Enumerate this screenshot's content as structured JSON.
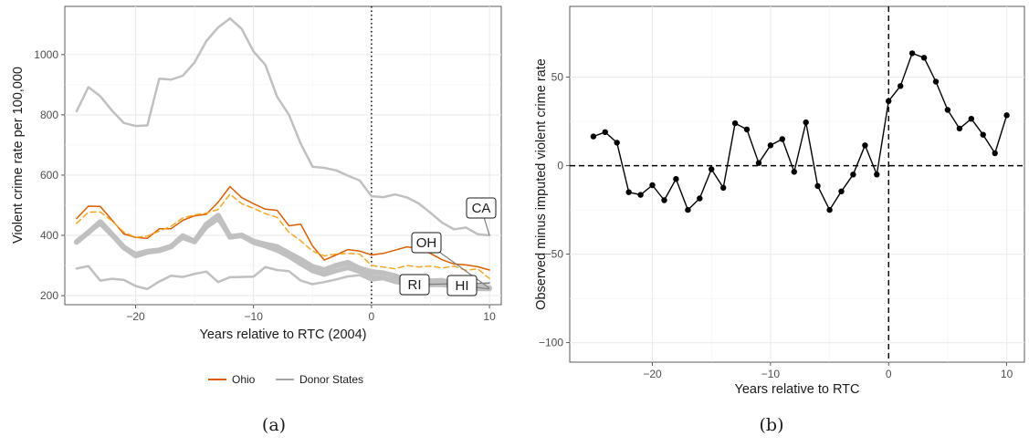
{
  "chart_data": [
    {
      "type": "line",
      "panel_caption": "(a)",
      "title": "",
      "xlabel": "Years relative to RTC (2004)",
      "ylabel": "Violent crime rate per 100,000",
      "xlim": [
        -26,
        11
      ],
      "ylim": [
        170,
        1160
      ],
      "xticks": [
        -20,
        -10,
        0,
        10
      ],
      "yticks": [
        200,
        400,
        600,
        800,
        1000
      ],
      "grid": true,
      "vline": {
        "x": 0,
        "style": "dotted"
      },
      "legend": {
        "position": "bottom",
        "entries": [
          {
            "name": "Ohio",
            "color": "#d95f02"
          },
          {
            "name": "Donor States",
            "color": "#a6a6a6"
          }
        ]
      },
      "x": [
        -25,
        -24,
        -23,
        -22,
        -21,
        -20,
        -19,
        -18,
        -17,
        -16,
        -15,
        -14,
        -13,
        -12,
        -11,
        -10,
        -9,
        -8,
        -7,
        -6,
        -5,
        -4,
        -3,
        -2,
        -1,
        0,
        1,
        2,
        3,
        4,
        5,
        6,
        7,
        8,
        9,
        10
      ],
      "series": [
        {
          "id": "ohio",
          "color": "#d95f02",
          "dash": "",
          "width": 1.5,
          "values": [
            456,
            497,
            496,
            451,
            405,
            393,
            390,
            422,
            422,
            450,
            465,
            470,
            510,
            562,
            525,
            505,
            487,
            483,
            432,
            437,
            365,
            318,
            335,
            353,
            348,
            335,
            340,
            351,
            362,
            357,
            340,
            319,
            305,
            302,
            296,
            285
          ]
        },
        {
          "id": "ohio-imputed",
          "color": "#f5a623",
          "dash": "6,4",
          "width": 1.5,
          "values": [
            440,
            477,
            478,
            448,
            411,
            393,
            398,
            414,
            430,
            458,
            468,
            474,
            486,
            537,
            505,
            490,
            472,
            460,
            410,
            382,
            348,
            332,
            338,
            340,
            338,
            300,
            295,
            289,
            300,
            295,
            298,
            292,
            298,
            284,
            289,
            257
          ]
        },
        {
          "id": "ca",
          "label": "CA",
          "color": "#c0c0c0",
          "dash": "",
          "width": 2.5,
          "values": [
            812,
            892,
            862,
            814,
            773,
            763,
            765,
            920,
            917,
            930,
            974,
            1045,
            1090,
            1120,
            1085,
            1010,
            966,
            860,
            800,
            704,
            628,
            624,
            616,
            598,
            582,
            530,
            527,
            536,
            526,
            506,
            475,
            442,
            420,
            426,
            404,
            400
          ]
        },
        {
          "id": "oh",
          "label": "OH",
          "color": "#c0c0c0",
          "dash": "",
          "width": 6,
          "values": [
            378,
            410,
            445,
            403,
            360,
            333,
            345,
            350,
            363,
            398,
            380,
            436,
            466,
            395,
            400,
            380,
            370,
            362,
            340,
            320,
            296,
            285,
            300,
            310,
            290,
            279,
            275,
            265,
            250,
            262,
            248,
            250,
            240,
            230,
            228,
            225
          ]
        },
        {
          "id": "ri",
          "label": "RI",
          "color": "#c0c0c0",
          "dash": "",
          "width": 2.5,
          "values": [
            290,
            298,
            250,
            256,
            252,
            232,
            222,
            247,
            266,
            262,
            272,
            280,
            245,
            261,
            262,
            263,
            295,
            285,
            281,
            250,
            238,
            245,
            254,
            264,
            268,
            250,
            255,
            257,
            252,
            254,
            250,
            243,
            246,
            240,
            236,
            242
          ]
        },
        {
          "id": "hi",
          "label": "HI",
          "color": "#c0c0c0",
          "dash": "",
          "width": 5,
          "values": [
            380,
            410,
            440,
            400,
            362,
            338,
            348,
            352,
            365,
            392,
            378,
            428,
            455,
            398,
            398,
            376,
            364,
            350,
            330,
            305,
            282,
            270,
            282,
            292,
            280,
            262,
            258,
            246,
            240,
            244,
            236,
            236,
            230,
            228,
            222,
            222
          ]
        }
      ],
      "annotations": [
        {
          "text": "CA",
          "series": "ca"
        },
        {
          "text": "OH",
          "series": "oh"
        },
        {
          "text": "RI",
          "series": "ri"
        },
        {
          "text": "HI",
          "series": "hi"
        }
      ]
    },
    {
      "type": "line",
      "panel_caption": "(b)",
      "title": "",
      "xlabel": "Years relative to RTC",
      "ylabel": "Observed minus imputed violent crime rate",
      "xlim": [
        -27,
        11.5
      ],
      "ylim": [
        -111,
        90
      ],
      "xticks": [
        -20,
        -10,
        0,
        10
      ],
      "yticks": [
        -100,
        -50,
        0,
        50
      ],
      "grid": true,
      "vline": {
        "x": 0,
        "style": "dashed"
      },
      "hline": {
        "y": 0,
        "style": "dashed"
      },
      "markers": true,
      "x": [
        -25,
        -24,
        -23,
        -22,
        -21,
        -20,
        -19,
        -18,
        -17,
        -16,
        -15,
        -14,
        -13,
        -12,
        -11,
        -10,
        -9,
        -8,
        -7,
        -6,
        -5,
        -4,
        -3,
        -2,
        -1,
        0,
        1,
        2,
        3,
        4,
        5,
        6,
        7,
        8,
        9,
        10
      ],
      "series": [
        {
          "id": "gap",
          "color": "#000000",
          "width": 1.4,
          "values": [
            16.5,
            19,
            13,
            -15,
            -16.5,
            -11,
            -19.5,
            -7.5,
            -25,
            -18.5,
            -2,
            -12.5,
            24,
            20.5,
            1.5,
            11.5,
            15,
            -3.5,
            24.5,
            -11.5,
            -25,
            -14.5,
            -5,
            11.5,
            -5,
            36.5,
            45,
            63.5,
            61,
            47.5,
            31.5,
            21,
            26.5,
            17.5,
            7,
            28.5
          ]
        }
      ]
    }
  ]
}
